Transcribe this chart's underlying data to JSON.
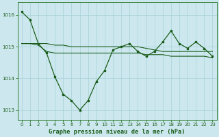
{
  "title": "Graphe pression niveau de la mer (hPa)",
  "background_color": "#cce8ee",
  "grid_color": "#a8d0d8",
  "line_color": "#1a5c1a",
  "spine_color": "#2d7a2d",
  "tick_color": "#1a5c1a",
  "xlim": [
    -0.5,
    23.5
  ],
  "ylim": [
    1012.7,
    1016.4
  ],
  "xticks": [
    0,
    1,
    2,
    3,
    4,
    5,
    6,
    7,
    8,
    9,
    10,
    11,
    12,
    13,
    14,
    15,
    16,
    17,
    18,
    19,
    20,
    21,
    22,
    23
  ],
  "yticks": [
    1013,
    1014,
    1015,
    1016
  ],
  "series0": [
    1016.1,
    1015.85,
    1015.1,
    1014.8,
    1014.05,
    1013.5,
    1013.3,
    1013.0,
    1013.3,
    1013.9,
    1014.25,
    1014.9,
    1015.0,
    1015.1,
    1014.85,
    1014.7,
    1014.85,
    1015.15,
    1015.5,
    1015.1,
    1014.95,
    1015.15,
    1014.95,
    1014.7
  ],
  "series1": [
    1015.1,
    1015.1,
    1015.1,
    1015.1,
    1015.05,
    1015.05,
    1015.0,
    1015.0,
    1015.0,
    1015.0,
    1015.0,
    1015.0,
    1015.0,
    1015.0,
    1015.0,
    1014.95,
    1014.9,
    1014.85,
    1014.85,
    1014.85,
    1014.85,
    1014.85,
    1014.85,
    1014.85
  ],
  "series2": [
    1015.1,
    1015.1,
    1015.05,
    1014.85,
    1014.8,
    1014.8,
    1014.8,
    1014.8,
    1014.8,
    1014.8,
    1014.8,
    1014.8,
    1014.8,
    1014.8,
    1014.8,
    1014.75,
    1014.75,
    1014.75,
    1014.7,
    1014.7,
    1014.7,
    1014.7,
    1014.7,
    1014.65
  ]
}
